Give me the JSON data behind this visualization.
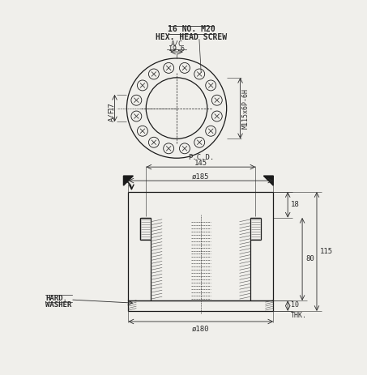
{
  "bg_color": "#f0efeb",
  "line_color": "#1a1a1a",
  "dim_color": "#2a2a2a",
  "title_top": "16 NO. M20",
  "title_bot": "HEX. HEAD SCREW",
  "lbl_19_6": "19.6",
  "lbl_ac": "A/C",
  "lbl_17": "17",
  "lbl_af": "A/F",
  "lbl_thread": "M115x6P-6H",
  "lbl_dia185": "ø185",
  "lbl_145": "145",
  "lbl_pcd": "P.C.D.",
  "lbl_18": "18",
  "lbl_80": "80",
  "lbl_115": "115",
  "lbl_dia180": "ø180",
  "lbl_10": "10",
  "lbl_thk": "THK.",
  "lbl_hard": "HARD.",
  "lbl_washer": "WASHER"
}
